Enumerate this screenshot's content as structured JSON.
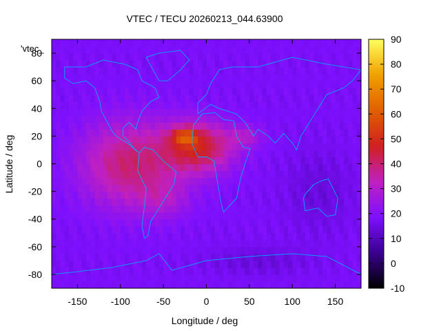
{
  "chart_data": {
    "type": "heatmap",
    "title": "VTEC / TECU 20260213_044.63900",
    "xlabel": "Longitude / deg",
    "ylabel": "Latitude / deg",
    "xlim": [
      -180,
      180
    ],
    "ylim": [
      -90,
      90
    ],
    "x_ticks": [
      -150,
      -100,
      -50,
      0,
      50,
      100,
      150
    ],
    "y_ticks": [
      -80,
      -60,
      -40,
      -20,
      0,
      20,
      40,
      60,
      80
    ],
    "colorbar": {
      "range": [
        -10,
        90
      ],
      "ticks": [
        -10,
        0,
        10,
        20,
        30,
        40,
        50,
        60,
        70,
        80,
        90
      ],
      "palette": [
        "#000000",
        "#3a0090",
        "#7e10ff",
        "#c020c0",
        "#d02020",
        "#e06000",
        "#f0a000",
        "#ffff60"
      ]
    },
    "legend_label": "'vtec_",
    "background_value": 18,
    "grid": false,
    "anomalies": [
      {
        "lon": -90,
        "lat": 0,
        "slon": 55,
        "slat": 30,
        "amp": 22
      },
      {
        "lon": -10,
        "lat": 12,
        "slon": 40,
        "slat": 18,
        "amp": 28
      },
      {
        "lon": -25,
        "lat": 20,
        "slon": 15,
        "slat": 6,
        "amp": 22
      },
      {
        "lon": -50,
        "lat": -25,
        "slon": 30,
        "slat": 14,
        "amp": 8
      },
      {
        "lon": 45,
        "lat": 20,
        "slon": 20,
        "slat": 8,
        "amp": 10
      },
      {
        "lon": 130,
        "lat": -20,
        "slon": 40,
        "slat": 30,
        "amp": -4
      },
      {
        "lon": 60,
        "lat": -70,
        "slon": 60,
        "slat": 10,
        "amp": -4
      }
    ],
    "continents": [
      {
        "name": "north-america",
        "points": [
          [
            -165,
            70
          ],
          [
            -140,
            70
          ],
          [
            -120,
            75
          ],
          [
            -95,
            72
          ],
          [
            -80,
            68
          ],
          [
            -75,
            60
          ],
          [
            -60,
            55
          ],
          [
            -55,
            48
          ],
          [
            -65,
            45
          ],
          [
            -75,
            38
          ],
          [
            -80,
            30
          ],
          [
            -82,
            25
          ],
          [
            -90,
            30
          ],
          [
            -97,
            26
          ],
          [
            -97,
            20
          ],
          [
            -90,
            16
          ],
          [
            -83,
            10
          ],
          [
            -78,
            8
          ],
          [
            -92,
            15
          ],
          [
            -105,
            20
          ],
          [
            -110,
            24
          ],
          [
            -117,
            32
          ],
          [
            -122,
            38
          ],
          [
            -124,
            45
          ],
          [
            -130,
            55
          ],
          [
            -140,
            60
          ],
          [
            -155,
            58
          ],
          [
            -165,
            62
          ],
          [
            -165,
            70
          ]
        ]
      },
      {
        "name": "south-america",
        "points": [
          [
            -78,
            8
          ],
          [
            -72,
            12
          ],
          [
            -62,
            10
          ],
          [
            -50,
            2
          ],
          [
            -35,
            -6
          ],
          [
            -38,
            -15
          ],
          [
            -48,
            -25
          ],
          [
            -58,
            -35
          ],
          [
            -65,
            -42
          ],
          [
            -68,
            -52
          ],
          [
            -72,
            -54
          ],
          [
            -75,
            -45
          ],
          [
            -72,
            -30
          ],
          [
            -70,
            -18
          ],
          [
            -80,
            -5
          ],
          [
            -78,
            8
          ]
        ]
      },
      {
        "name": "africa",
        "points": [
          [
            -17,
            15
          ],
          [
            -15,
            28
          ],
          [
            -5,
            36
          ],
          [
            10,
            37
          ],
          [
            20,
            32
          ],
          [
            32,
            31
          ],
          [
            35,
            20
          ],
          [
            43,
            12
          ],
          [
            51,
            11
          ],
          [
            45,
            0
          ],
          [
            40,
            -10
          ],
          [
            35,
            -25
          ],
          [
            20,
            -35
          ],
          [
            17,
            -28
          ],
          [
            12,
            -10
          ],
          [
            9,
            2
          ],
          [
            0,
            5
          ],
          [
            -10,
            5
          ],
          [
            -17,
            15
          ]
        ]
      },
      {
        "name": "eurasia",
        "points": [
          [
            -10,
            36
          ],
          [
            -10,
            44
          ],
          [
            0,
            50
          ],
          [
            5,
            58
          ],
          [
            15,
            68
          ],
          [
            30,
            70
          ],
          [
            60,
            70
          ],
          [
            100,
            77
          ],
          [
            140,
            72
          ],
          [
            180,
            68
          ],
          [
            170,
            60
          ],
          [
            160,
            55
          ],
          [
            140,
            50
          ],
          [
            130,
            40
          ],
          [
            120,
            30
          ],
          [
            110,
            20
          ],
          [
            105,
            10
          ],
          [
            100,
            15
          ],
          [
            90,
            22
          ],
          [
            80,
            15
          ],
          [
            72,
            20
          ],
          [
            60,
            25
          ],
          [
            55,
            20
          ],
          [
            45,
            30
          ],
          [
            35,
            36
          ],
          [
            25,
            38
          ],
          [
            15,
            40
          ],
          [
            5,
            43
          ],
          [
            -10,
            36
          ]
        ]
      },
      {
        "name": "australia",
        "points": [
          [
            115,
            -22
          ],
          [
            125,
            -15
          ],
          [
            135,
            -12
          ],
          [
            142,
            -11
          ],
          [
            145,
            -15
          ],
          [
            153,
            -25
          ],
          [
            150,
            -37
          ],
          [
            140,
            -38
          ],
          [
            130,
            -32
          ],
          [
            115,
            -34
          ],
          [
            113,
            -25
          ],
          [
            115,
            -22
          ]
        ]
      },
      {
        "name": "greenland",
        "points": [
          [
            -55,
            60
          ],
          [
            -45,
            60
          ],
          [
            -30,
            68
          ],
          [
            -20,
            75
          ],
          [
            -30,
            82
          ],
          [
            -55,
            80
          ],
          [
            -70,
            77
          ],
          [
            -55,
            60
          ]
        ]
      },
      {
        "name": "antarctica",
        "points": [
          [
            -180,
            -80
          ],
          [
            -150,
            -78
          ],
          [
            -110,
            -75
          ],
          [
            -70,
            -70
          ],
          [
            -55,
            -65
          ],
          [
            -40,
            -77
          ],
          [
            0,
            -70
          ],
          [
            50,
            -67
          ],
          [
            100,
            -65
          ],
          [
            140,
            -67
          ],
          [
            180,
            -80
          ]
        ]
      }
    ]
  }
}
